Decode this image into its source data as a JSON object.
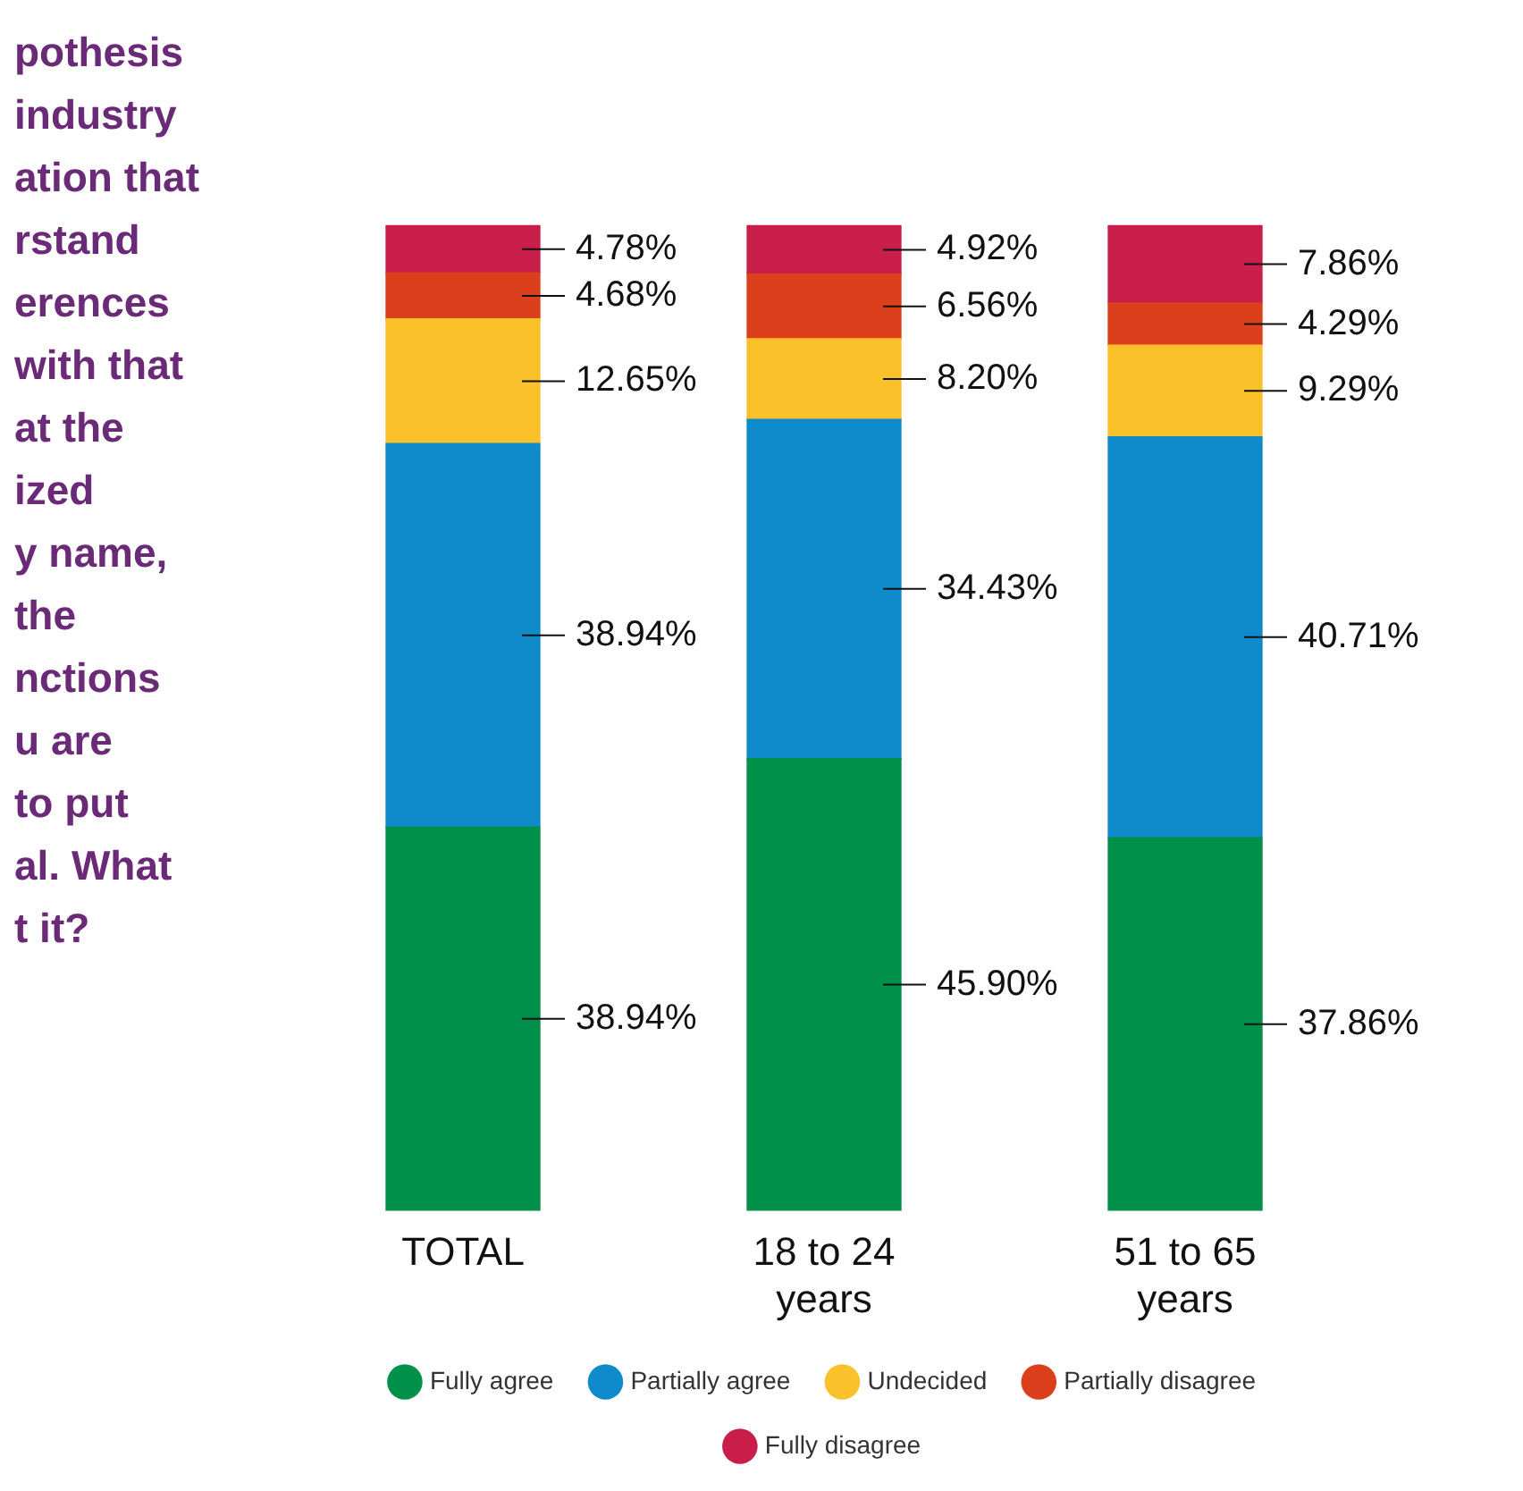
{
  "chart_data": {
    "type": "bar",
    "stacked": true,
    "categories": [
      "TOTAL",
      "18 to 24\nyears",
      "51 to 65\nyears"
    ],
    "series": [
      {
        "name": "Fully agree",
        "color": "#00904a",
        "values": [
          38.94,
          45.9,
          37.86
        ],
        "value_labels": [
          "38.94%",
          "45.90%",
          "37.86%"
        ]
      },
      {
        "name": "Partially agree",
        "color": "#0f8bcb",
        "values": [
          38.94,
          34.43,
          40.71
        ],
        "value_labels": [
          "38.94%",
          "34.43%",
          "40.71%"
        ]
      },
      {
        "name": "Undecided",
        "color": "#fbc12a",
        "values": [
          12.65,
          8.2,
          9.29
        ],
        "value_labels": [
          "12.65%",
          "8.20%",
          "9.29%"
        ]
      },
      {
        "name": "Partially disagree",
        "color": "#dc3f1c",
        "values": [
          4.68,
          6.56,
          4.29
        ],
        "value_labels": [
          "4.68%",
          "6.56%",
          "4.29%"
        ]
      },
      {
        "name": "Fully disagree",
        "color": "#c91d4a",
        "values": [
          4.78,
          4.92,
          7.86
        ],
        "value_labels": [
          "4.78%",
          "4.92%",
          "7.86%"
        ]
      }
    ],
    "legend": "bottom",
    "grid": false,
    "annotations": [
      "pothesis",
      "industry",
      "ation that",
      "rstand",
      "erences",
      "with that",
      "at the",
      "ized",
      "y name,",
      "the",
      "nctions",
      "u are",
      "to put",
      "al. What",
      "t it?"
    ]
  }
}
